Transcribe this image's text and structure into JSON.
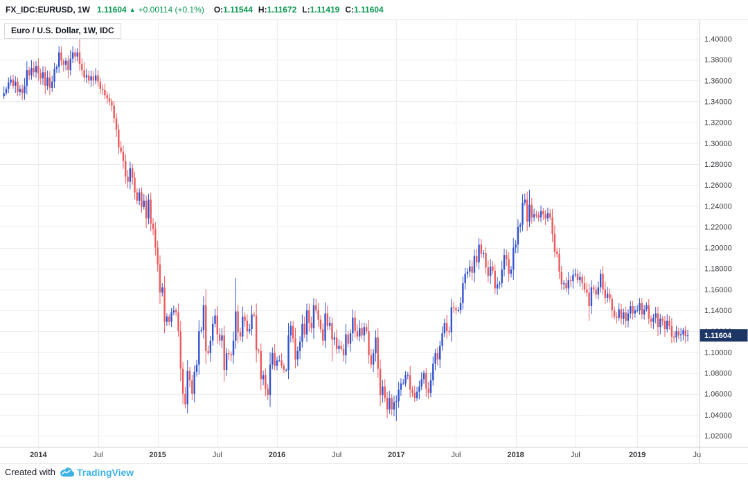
{
  "topbar": {
    "symbol": "FX_IDC:EURUSD, 1W",
    "last_price": "1.11604",
    "direction_arrow": "▲",
    "change": "+0.00114 (+0.1%)",
    "open_label": "O:",
    "open": "1.11544",
    "high_label": "H:",
    "high": "1.11672",
    "low_label": "L:",
    "low": "1.11419",
    "close_label": "C:",
    "close": "1.11604"
  },
  "legend": {
    "title": "Euro / U.S. Dollar, 1W, IDC"
  },
  "footer": {
    "created_with": "Created with",
    "brand": "TradingView"
  },
  "colors": {
    "up": "#3152cd",
    "down": "#e9595c",
    "grid": "#ededef",
    "axis_text": "#35373c",
    "axis_line": "#c5c8cc",
    "separator": "#e6e8ea",
    "green_text": "#0a9850",
    "price_tag_bg": "#1d3666",
    "price_tag_text": "#ffffff",
    "brand_blue": "#3fb2e5"
  },
  "chart_data": {
    "type": "candlestick",
    "title": "Euro / U.S. Dollar, 1W, IDC",
    "legend_symbol": "FX_IDC:EURUSD",
    "interval": "1W",
    "last_price": 1.11604,
    "grid": true,
    "y_axis": {
      "min": 1.02,
      "max": 1.4,
      "step": 0.02,
      "decimals": 5,
      "position": "right",
      "ticks": [
        1.4,
        1.38,
        1.36,
        1.34,
        1.32,
        1.3,
        1.28,
        1.26,
        1.24,
        1.22,
        1.2,
        1.18,
        1.16,
        1.14,
        1.12,
        1.1,
        1.08,
        1.06,
        1.04,
        1.02
      ]
    },
    "x_axis": {
      "ticks": [
        {
          "pos": 15,
          "label": "2014"
        },
        {
          "pos": 41,
          "label": "Jul"
        },
        {
          "pos": 67,
          "label": "2015"
        },
        {
          "pos": 93,
          "label": "Jul"
        },
        {
          "pos": 119,
          "label": "2016"
        },
        {
          "pos": 145,
          "label": "Jul"
        },
        {
          "pos": 171,
          "label": "2017"
        },
        {
          "pos": 197,
          "label": "Jul"
        },
        {
          "pos": 223,
          "label": "2018"
        },
        {
          "pos": 249,
          "label": "Jul"
        },
        {
          "pos": 276,
          "label": "2019"
        },
        {
          "pos": 302,
          "label": "Ju"
        }
      ]
    },
    "first_open": 1.345,
    "weekly_closes": [
      1.348,
      1.352,
      1.358,
      1.361,
      1.355,
      1.359,
      1.349,
      1.352,
      1.348,
      1.355,
      1.37,
      1.365,
      1.372,
      1.368,
      1.374,
      1.367,
      1.362,
      1.368,
      1.355,
      1.363,
      1.353,
      1.359,
      1.371,
      1.373,
      1.387,
      1.379,
      1.375,
      1.379,
      1.37,
      1.381,
      1.387,
      1.383,
      1.387,
      1.376,
      1.37,
      1.363,
      1.365,
      1.36,
      1.364,
      1.36,
      1.365,
      1.359,
      1.352,
      1.351,
      1.346,
      1.343,
      1.34,
      1.336,
      1.324,
      1.313,
      1.296,
      1.292,
      1.283,
      1.268,
      1.263,
      1.276,
      1.267,
      1.253,
      1.245,
      1.253,
      1.239,
      1.245,
      1.228,
      1.246,
      1.223,
      1.218,
      1.2,
      1.184,
      1.157,
      1.162,
      1.129,
      1.134,
      1.129,
      1.138,
      1.14,
      1.138,
      1.12,
      1.084,
      1.06,
      1.05,
      1.082,
      1.073,
      1.06,
      1.081,
      1.088,
      1.12,
      1.121,
      1.145,
      1.101,
      1.099,
      1.111,
      1.127,
      1.135,
      1.117,
      1.111,
      1.116,
      1.083,
      1.099,
      1.098,
      1.097,
      1.111,
      1.139,
      1.119,
      1.115,
      1.134,
      1.13,
      1.12,
      1.122,
      1.136,
      1.135,
      1.102,
      1.101,
      1.074,
      1.078,
      1.065,
      1.059,
      1.088,
      1.099,
      1.087,
      1.092,
      1.092,
      1.087,
      1.083,
      1.083,
      1.116,
      1.125,
      1.113,
      1.093,
      1.101,
      1.11,
      1.127,
      1.117,
      1.14,
      1.128,
      1.123,
      1.145,
      1.14,
      1.131,
      1.122,
      1.111,
      1.137,
      1.125,
      1.128,
      1.112,
      1.114,
      1.103,
      1.106,
      1.103,
      1.097,
      1.117,
      1.108,
      1.118,
      1.133,
      1.12,
      1.115,
      1.123,
      1.116,
      1.124,
      1.12,
      1.097,
      1.088,
      1.099,
      1.114,
      1.084,
      1.059,
      1.067,
      1.056,
      1.045,
      1.056,
      1.045,
      1.052,
      1.053,
      1.064,
      1.07,
      1.07,
      1.078,
      1.078,
      1.064,
      1.061,
      1.056,
      1.062,
      1.067,
      1.074,
      1.08,
      1.065,
      1.061,
      1.073,
      1.089,
      1.099,
      1.093,
      1.106,
      1.118,
      1.128,
      1.12,
      1.119,
      1.143,
      1.142,
      1.14,
      1.14,
      1.147,
      1.166,
      1.175,
      1.177,
      1.182,
      1.176,
      1.192,
      1.186,
      1.203,
      1.194,
      1.195,
      1.181,
      1.173,
      1.182,
      1.178,
      1.161,
      1.165,
      1.166,
      1.179,
      1.193,
      1.189,
      1.175,
      1.179,
      1.2,
      1.203,
      1.22,
      1.222,
      1.243,
      1.246,
      1.225,
      1.241,
      1.229,
      1.232,
      1.231,
      1.229,
      1.235,
      1.232,
      1.228,
      1.233,
      1.229,
      1.213,
      1.196,
      1.194,
      1.177,
      1.165,
      1.166,
      1.161,
      1.169,
      1.168,
      1.174,
      1.175,
      1.169,
      1.172,
      1.166,
      1.16,
      1.157,
      1.144,
      1.162,
      1.16,
      1.155,
      1.162,
      1.175,
      1.16,
      1.152,
      1.156,
      1.151,
      1.14,
      1.134,
      1.133,
      1.141,
      1.132,
      1.138,
      1.13,
      1.137,
      1.144,
      1.137,
      1.14,
      1.14,
      1.147,
      1.136,
      1.141,
      1.145,
      1.132,
      1.129,
      1.133,
      1.137,
      1.124,
      1.132,
      1.13,
      1.122,
      1.13,
      1.125,
      1.115,
      1.114,
      1.12,
      1.116,
      1.117,
      1.121,
      1.1154,
      1.116
    ],
    "wick_overrides": {
      "33": {
        "high": 1.3993
      },
      "68": {
        "low": 1.146
      },
      "79": {
        "low": 1.0462
      },
      "101": {
        "high": 1.1712
      },
      "143": {
        "low": 1.091
      },
      "167": {
        "low": 1.0367
      },
      "171": {
        "low": 1.0341
      },
      "207": {
        "high": 1.2092
      },
      "229": {
        "high": 1.2555
      },
      "255": {
        "low": 1.13
      }
    }
  }
}
